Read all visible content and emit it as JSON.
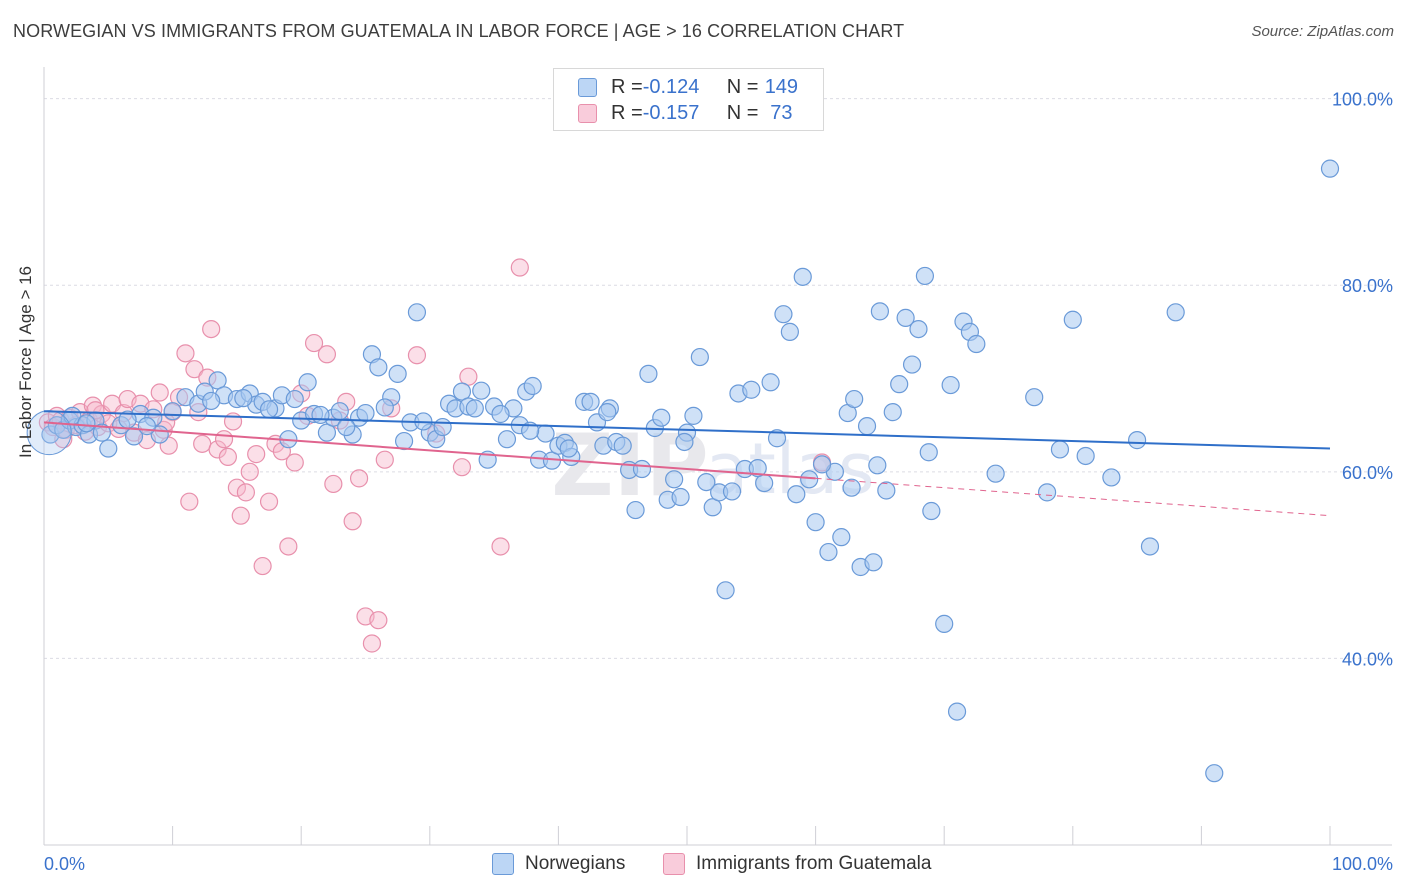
{
  "header": {
    "title": "NORWEGIAN VS IMMIGRANTS FROM GUATEMALA IN LABOR FORCE | AGE > 16 CORRELATION CHART",
    "source": "Source: ZipAtlas.com"
  },
  "legend": {
    "rows": [
      {
        "r_label": "R = ",
        "r_value": "-0.124",
        "n_label": "N = ",
        "n_value": "149"
      },
      {
        "r_label": "R = ",
        "r_value": "-0.157",
        "n_label": "N = ",
        "n_value": " 73"
      }
    ]
  },
  "watermark": {
    "zip": "ZIP",
    "atlas": "atlas"
  },
  "chart_data": {
    "type": "scatter",
    "title": "NORWEGIAN VS IMMIGRANTS FROM GUATEMALA IN LABOR FORCE | AGE > 16 CORRELATION CHART",
    "ylabel": "In Labor Force | Age > 16",
    "xlabel": "",
    "x_tick_labels": [
      "0.0%",
      "100.0%"
    ],
    "y_tick_labels": [
      "100.0%",
      "80.0%",
      "60.0%",
      "40.0%"
    ],
    "y_ticks": [
      100,
      80,
      60,
      40
    ],
    "xlim": [
      0,
      100
    ],
    "ylim": [
      20,
      102
    ],
    "grid": true,
    "legend_position": "top-center",
    "colors": {
      "norwegians_fill": "#a8c8f0",
      "norwegians_stroke": "#6a9ad8",
      "norwegians_line": "#2f6fc9",
      "guatemala_fill": "#f6b8cc",
      "guatemala_stroke": "#e890ac",
      "guatemala_line": "#e0648e",
      "tick_label": "#3a72cc"
    },
    "series": [
      {
        "name": "Norwegians",
        "r": -0.124,
        "n": 149,
        "trend": {
          "x": [
            0,
            100
          ],
          "y": [
            66.5,
            62.5
          ]
        },
        "points": [
          [
            0.5,
            64
          ],
          [
            1.0,
            65
          ],
          [
            1.5,
            64.5
          ],
          [
            2.0,
            65.5
          ],
          [
            2.5,
            64.8
          ],
          [
            3.0,
            65
          ],
          [
            3.5,
            64
          ],
          [
            4.0,
            65.5
          ],
          [
            4.5,
            64.2
          ],
          [
            5.0,
            62.5
          ],
          [
            6.0,
            65
          ],
          [
            7.0,
            63.8
          ],
          [
            7.5,
            66.2
          ],
          [
            8.5,
            65.8
          ],
          [
            9.0,
            64
          ],
          [
            10.0,
            66.5
          ],
          [
            11.0,
            68
          ],
          [
            12.0,
            67.3
          ],
          [
            12.5,
            68.6
          ],
          [
            13.5,
            69.8
          ],
          [
            14.0,
            68.2
          ],
          [
            15.0,
            67.8
          ],
          [
            16.0,
            68.4
          ],
          [
            16.5,
            67.2
          ],
          [
            17.0,
            67.5
          ],
          [
            18.0,
            66.8
          ],
          [
            18.5,
            68.2
          ],
          [
            19.0,
            63.5
          ],
          [
            19.5,
            67.8
          ],
          [
            20.0,
            65.5
          ],
          [
            20.5,
            69.6
          ],
          [
            21.0,
            66.2
          ],
          [
            22.0,
            64.2
          ],
          [
            22.5,
            65.8
          ],
          [
            23.0,
            66.5
          ],
          [
            24.0,
            64
          ],
          [
            24.5,
            65.8
          ],
          [
            25.0,
            66.3
          ],
          [
            25.5,
            72.6
          ],
          [
            26.0,
            71.2
          ],
          [
            27.0,
            68
          ],
          [
            27.5,
            70.5
          ],
          [
            28.0,
            63.3
          ],
          [
            28.5,
            65.3
          ],
          [
            29.0,
            77.1
          ],
          [
            30.0,
            64.2
          ],
          [
            30.5,
            63.5
          ],
          [
            31.0,
            64.8
          ],
          [
            31.5,
            67.3
          ],
          [
            32.0,
            66.8
          ],
          [
            32.5,
            68.6
          ],
          [
            33.0,
            67
          ],
          [
            34.0,
            68.7
          ],
          [
            34.5,
            61.3
          ],
          [
            35.0,
            67
          ],
          [
            36.0,
            63.5
          ],
          [
            36.5,
            66.8
          ],
          [
            37.0,
            65
          ],
          [
            37.5,
            68.6
          ],
          [
            38.0,
            69.2
          ],
          [
            38.5,
            61.3
          ],
          [
            39.0,
            64.1
          ],
          [
            39.5,
            61.2
          ],
          [
            40.0,
            62.8
          ],
          [
            40.5,
            63.1
          ],
          [
            41.0,
            61.6
          ],
          [
            42.0,
            67.5
          ],
          [
            42.5,
            67.5
          ],
          [
            43.0,
            65.3
          ],
          [
            43.5,
            62.8
          ],
          [
            44.0,
            66.8
          ],
          [
            44.5,
            63.2
          ],
          [
            45.0,
            62.8
          ],
          [
            45.5,
            60.2
          ],
          [
            46.0,
            55.9
          ],
          [
            47.0,
            70.5
          ],
          [
            47.5,
            64.7
          ],
          [
            48.0,
            65.8
          ],
          [
            48.5,
            57
          ],
          [
            49.0,
            59.2
          ],
          [
            49.5,
            57.3
          ],
          [
            50.0,
            64.2
          ],
          [
            50.5,
            66
          ],
          [
            51.0,
            72.3
          ],
          [
            52.0,
            56.2
          ],
          [
            52.5,
            57.8
          ],
          [
            53.0,
            47.3
          ],
          [
            53.5,
            57.9
          ],
          [
            54.0,
            68.4
          ],
          [
            54.5,
            60.3
          ],
          [
            55.0,
            68.8
          ],
          [
            56.0,
            58.8
          ],
          [
            56.5,
            69.6
          ],
          [
            57.0,
            63.6
          ],
          [
            57.5,
            76.9
          ],
          [
            58.0,
            75
          ],
          [
            59.0,
            80.9
          ],
          [
            59.5,
            59.2
          ],
          [
            60.0,
            54.6
          ],
          [
            61.0,
            51.4
          ],
          [
            61.5,
            60
          ],
          [
            62.0,
            53
          ],
          [
            62.5,
            66.3
          ],
          [
            63.0,
            67.8
          ],
          [
            63.5,
            49.8
          ],
          [
            64.0,
            64.9
          ],
          [
            64.5,
            50.3
          ],
          [
            65.0,
            77.2
          ],
          [
            65.5,
            58
          ],
          [
            66.0,
            66.4
          ],
          [
            66.5,
            69.4
          ],
          [
            67.0,
            76.5
          ],
          [
            67.5,
            71.5
          ],
          [
            68.0,
            75.3
          ],
          [
            68.5,
            81
          ],
          [
            69.0,
            55.8
          ],
          [
            70.0,
            43.7
          ],
          [
            70.5,
            69.3
          ],
          [
            71.0,
            34.3
          ],
          [
            71.5,
            76.1
          ],
          [
            72.0,
            75
          ],
          [
            72.5,
            73.7
          ],
          [
            77.0,
            68
          ],
          [
            78.0,
            57.8
          ],
          [
            80.0,
            76.3
          ],
          [
            83.0,
            59.4
          ],
          [
            86.0,
            52
          ],
          [
            88.0,
            77.1
          ],
          [
            91.0,
            27.7
          ],
          [
            100.0,
            92.5
          ],
          [
            2.2,
            66
          ],
          [
            3.3,
            65.2
          ],
          [
            6.5,
            65.6
          ],
          [
            8.0,
            64.9
          ],
          [
            13.0,
            67.6
          ],
          [
            15.5,
            67.9
          ],
          [
            17.5,
            66.7
          ],
          [
            21.5,
            66.1
          ],
          [
            23.5,
            64.8
          ],
          [
            26.5,
            66.9
          ],
          [
            29.5,
            65.4
          ],
          [
            33.5,
            66.8
          ],
          [
            35.5,
            66.2
          ],
          [
            37.8,
            64.4
          ],
          [
            40.8,
            62.5
          ],
          [
            43.8,
            66.4
          ],
          [
            46.5,
            60.3
          ],
          [
            49.8,
            63.2
          ],
          [
            51.5,
            58.9
          ],
          [
            55.5,
            60.4
          ],
          [
            58.5,
            57.6
          ],
          [
            60.5,
            60.8
          ],
          [
            62.8,
            58.3
          ],
          [
            64.8,
            60.7
          ],
          [
            68.8,
            62.1
          ],
          [
            74.0,
            59.8
          ],
          [
            79.0,
            62.4
          ],
          [
            81.0,
            61.7
          ],
          [
            85.0,
            63.4
          ]
        ]
      },
      {
        "name": "Immigrants from Guatemala",
        "r": -0.157,
        "n": 73,
        "trend": {
          "x": [
            0,
            60
          ],
          "y": [
            65.3,
            59.3
          ]
        },
        "trend_dashed": {
          "x": [
            60,
            100
          ],
          "y": [
            59.3,
            55.3
          ]
        },
        "points": [
          [
            0.3,
            65.3
          ],
          [
            0.7,
            64.8
          ],
          [
            1.0,
            66
          ],
          [
            1.3,
            65.5
          ],
          [
            1.7,
            64.5
          ],
          [
            2.0,
            65.8
          ],
          [
            2.5,
            65
          ],
          [
            2.8,
            66.4
          ],
          [
            3.2,
            64.3
          ],
          [
            3.5,
            65.5
          ],
          [
            3.8,
            67.1
          ],
          [
            4.2,
            64.8
          ],
          [
            4.5,
            66.2
          ],
          [
            5.0,
            65.2
          ],
          [
            5.3,
            67.3
          ],
          [
            5.8,
            64.6
          ],
          [
            6.2,
            66.3
          ],
          [
            6.5,
            67.8
          ],
          [
            7.0,
            64.2
          ],
          [
            7.5,
            67.3
          ],
          [
            8.0,
            63.4
          ],
          [
            8.5,
            66.7
          ],
          [
            9.0,
            68.5
          ],
          [
            9.3,
            64.5
          ],
          [
            9.7,
            62.8
          ],
          [
            10.0,
            66.4
          ],
          [
            10.5,
            68
          ],
          [
            11.0,
            72.7
          ],
          [
            11.3,
            56.8
          ],
          [
            11.7,
            71
          ],
          [
            12.0,
            66.4
          ],
          [
            12.3,
            63
          ],
          [
            12.7,
            70.1
          ],
          [
            13.0,
            75.3
          ],
          [
            13.5,
            62.4
          ],
          [
            14.0,
            63.5
          ],
          [
            14.3,
            61.6
          ],
          [
            14.7,
            65.4
          ],
          [
            15.0,
            58.3
          ],
          [
            15.3,
            55.3
          ],
          [
            15.7,
            57.8
          ],
          [
            16.0,
            60
          ],
          [
            16.5,
            61.9
          ],
          [
            17.0,
            49.9
          ],
          [
            17.5,
            56.8
          ],
          [
            18.0,
            63
          ],
          [
            18.5,
            62.2
          ],
          [
            19.0,
            52
          ],
          [
            19.5,
            61
          ],
          [
            20.0,
            68.4
          ],
          [
            20.5,
            66
          ],
          [
            21.0,
            73.8
          ],
          [
            22.0,
            72.6
          ],
          [
            22.5,
            58.7
          ],
          [
            23.0,
            65.5
          ],
          [
            23.5,
            67.5
          ],
          [
            24.0,
            54.7
          ],
          [
            24.5,
            59.3
          ],
          [
            25.0,
            44.5
          ],
          [
            25.5,
            41.6
          ],
          [
            26.0,
            44.1
          ],
          [
            26.5,
            61.3
          ],
          [
            27.0,
            66.8
          ],
          [
            29.0,
            72.5
          ],
          [
            30.5,
            64.1
          ],
          [
            32.5,
            60.5
          ],
          [
            33.0,
            70.2
          ],
          [
            35.5,
            52
          ],
          [
            37.0,
            81.9
          ],
          [
            60.5,
            61
          ],
          [
            1.5,
            63.5
          ],
          [
            4.0,
            66.6
          ],
          [
            9.5,
            65.3
          ]
        ]
      }
    ]
  }
}
